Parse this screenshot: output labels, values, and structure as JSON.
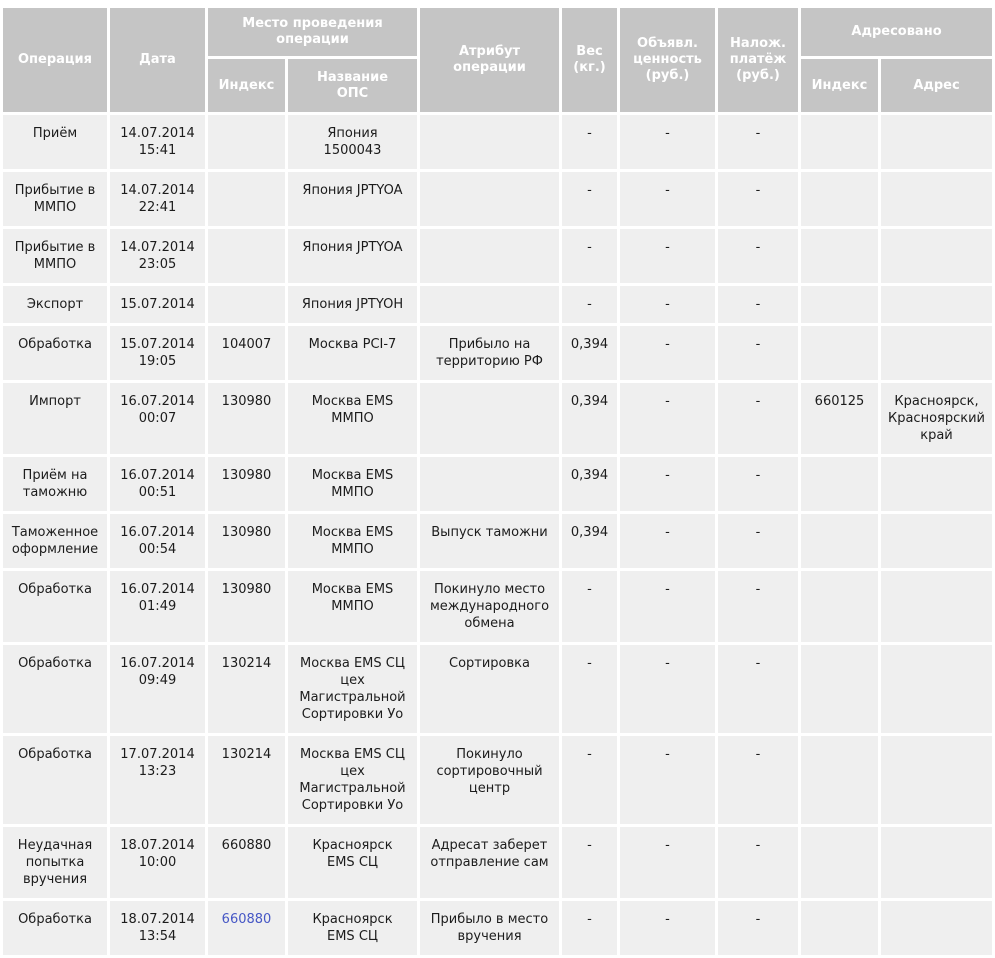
{
  "colors": {
    "header_bg": "#c5c5c5",
    "header_text": "#ffffff",
    "cell_bg": "#efefef",
    "cell_text": "#1c1c1c",
    "link_color": "#4657c5"
  },
  "table": {
    "header": {
      "operation": "Операция",
      "date": "Дата",
      "place_group": "Место проведения\nоперации",
      "place_index": "Индекс",
      "place_name": "Название\nОПС",
      "attribute": "Атрибут\nоперации",
      "weight": "Вес\n(кг.)",
      "declared_value": "Объявл.\nценность\n(руб.)",
      "cod": "Налож.\nплатёж\n(руб.)",
      "addressed_group": "Адресовано",
      "addr_index": "Индекс",
      "addr_address": "Адрес"
    },
    "rows": [
      {
        "operation": "Приём",
        "date": "14.07.2014\n15:41",
        "index": "",
        "ops_name": "Япония\n1500043",
        "attribute": "",
        "weight": "-",
        "declared_value": "-",
        "cod": "-",
        "addr_index": "",
        "address": ""
      },
      {
        "operation": "Прибытие в\nММПО",
        "date": "14.07.2014\n22:41",
        "index": "",
        "ops_name": "Япония JPTYOA",
        "attribute": "",
        "weight": "-",
        "declared_value": "-",
        "cod": "-",
        "addr_index": "",
        "address": ""
      },
      {
        "operation": "Прибытие в\nММПО",
        "date": "14.07.2014\n23:05",
        "index": "",
        "ops_name": "Япония JPTYOA",
        "attribute": "",
        "weight": "-",
        "declared_value": "-",
        "cod": "-",
        "addr_index": "",
        "address": ""
      },
      {
        "operation": "Экспорт",
        "date": "15.07.2014",
        "index": "",
        "ops_name": "Япония JPTYOH",
        "attribute": "",
        "weight": "-",
        "declared_value": "-",
        "cod": "-",
        "addr_index": "",
        "address": ""
      },
      {
        "operation": "Обработка",
        "date": "15.07.2014\n19:05",
        "index": "104007",
        "ops_name": "Москва PCI-7",
        "attribute": "Прибыло на\nтерриторию РФ",
        "weight": "0,394",
        "declared_value": "-",
        "cod": "-",
        "addr_index": "",
        "address": ""
      },
      {
        "operation": "Импорт",
        "date": "16.07.2014\n00:07",
        "index": "130980",
        "ops_name": "Москва EMS\nММПО",
        "attribute": "",
        "weight": "0,394",
        "declared_value": "-",
        "cod": "-",
        "addr_index": "660125",
        "address": "Красноярск,\nКрасноярский\nкрай"
      },
      {
        "operation": "Приём на\nтаможню",
        "date": "16.07.2014\n00:51",
        "index": "130980",
        "ops_name": "Москва EMS\nММПО",
        "attribute": "",
        "weight": "0,394",
        "declared_value": "-",
        "cod": "-",
        "addr_index": "",
        "address": ""
      },
      {
        "operation": "Таможенное\nоформление",
        "date": "16.07.2014\n00:54",
        "index": "130980",
        "ops_name": "Москва EMS\nММПО",
        "attribute": "Выпуск таможни",
        "weight": "0,394",
        "declared_value": "-",
        "cod": "-",
        "addr_index": "",
        "address": ""
      },
      {
        "operation": "Обработка",
        "date": "16.07.2014\n01:49",
        "index": "130980",
        "ops_name": "Москва EMS\nММПО",
        "attribute": "Покинуло место\nмеждународного\nобмена",
        "weight": "-",
        "declared_value": "-",
        "cod": "-",
        "addr_index": "",
        "address": ""
      },
      {
        "operation": "Обработка",
        "date": "16.07.2014\n09:49",
        "index": "130214",
        "ops_name": "Москва EMS СЦ\nцех\nМагистральной\nСортировки Уо",
        "attribute": "Сортировка",
        "weight": "-",
        "declared_value": "-",
        "cod": "-",
        "addr_index": "",
        "address": ""
      },
      {
        "operation": "Обработка",
        "date": "17.07.2014\n13:23",
        "index": "130214",
        "ops_name": "Москва EMS СЦ\nцех\nМагистральной\nСортировки Уо",
        "attribute": "Покинуло\nсортировочный\nцентр",
        "weight": "-",
        "declared_value": "-",
        "cod": "-",
        "addr_index": "",
        "address": ""
      },
      {
        "operation": "Неудачная\nпопытка\nвручения",
        "date": "18.07.2014\n10:00",
        "index": "660880",
        "ops_name": "Красноярск\nEMS СЦ",
        "attribute": "Адресат заберет\nотправление сам",
        "weight": "-",
        "declared_value": "-",
        "cod": "-",
        "addr_index": "",
        "address": ""
      },
      {
        "operation": "Обработка",
        "date": "18.07.2014\n13:54",
        "index": "660880",
        "index_link": true,
        "ops_name": "Красноярск\nEMS СЦ",
        "attribute": "Прибыло в место\nвручения",
        "weight": "-",
        "declared_value": "-",
        "cod": "-",
        "addr_index": "",
        "address": ""
      }
    ]
  }
}
